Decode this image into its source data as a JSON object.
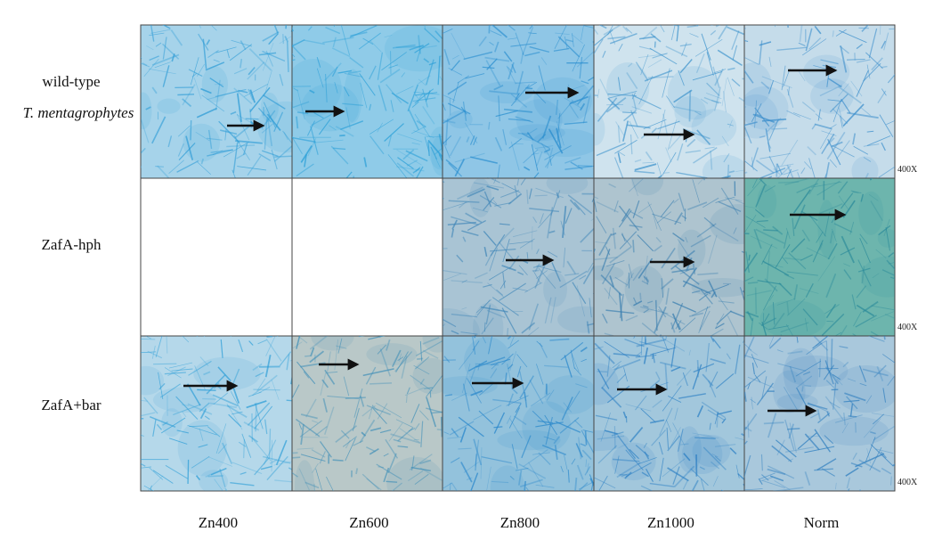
{
  "rows": [
    {
      "label_lines": [
        "wild-type",
        "T. mentagrophytes"
      ],
      "magnification": "400X"
    },
    {
      "label_lines": [
        "ZafA-hph"
      ],
      "magnification": "400X"
    },
    {
      "label_lines": [
        "ZafA+bar"
      ],
      "magnification": "400X"
    }
  ],
  "columns": [
    "Zn400",
    "Zn600",
    "Zn800",
    "Zn1000",
    "Norm"
  ]
}
